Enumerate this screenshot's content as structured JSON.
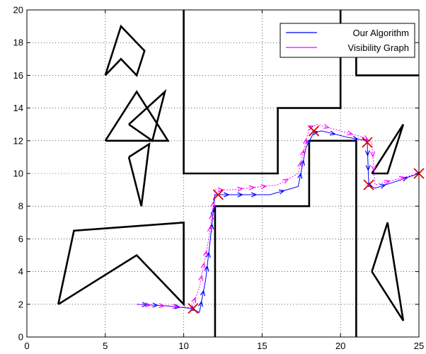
{
  "chart_data": {
    "type": "line",
    "title": "",
    "xlabel": "",
    "ylabel": "",
    "xlim": [
      0,
      25
    ],
    "ylim": [
      0,
      20
    ],
    "xticks": [
      "0",
      "5",
      "10",
      "15",
      "20",
      "25"
    ],
    "yticks": [
      "0",
      "2",
      "4",
      "6",
      "8",
      "10",
      "12",
      "14",
      "16",
      "18",
      "20"
    ],
    "grid": true,
    "legend_position": "top-right",
    "obstacles": [
      [
        [
          2,
          2
        ],
        [
          3,
          6.5
        ],
        [
          10,
          7
        ],
        [
          10,
          2
        ],
        [
          7,
          5
        ],
        [
          2,
          2
        ]
      ],
      [
        [
          6.5,
          13
        ],
        [
          8,
          12
        ],
        [
          8.8,
          15
        ],
        [
          6.5,
          13
        ]
      ],
      [
        [
          5,
          12
        ],
        [
          7,
          15
        ],
        [
          9,
          12
        ],
        [
          5,
          12
        ]
      ],
      [
        [
          6.5,
          11
        ],
        [
          7.8,
          11.8
        ],
        [
          7.3,
          8
        ],
        [
          6.5,
          11
        ]
      ],
      [
        [
          5,
          16
        ],
        [
          6,
          19
        ],
        [
          7.5,
          17.5
        ],
        [
          7,
          16
        ],
        [
          6,
          17
        ],
        [
          5,
          16
        ]
      ],
      [
        [
          10,
          20
        ],
        [
          10,
          10
        ],
        [
          16,
          10
        ],
        [
          16,
          14
        ],
        [
          20,
          14
        ],
        [
          20,
          20
        ]
      ],
      [
        [
          20,
          17.5
        ],
        [
          21,
          17.5
        ],
        [
          21,
          16
        ],
        [
          25,
          16
        ]
      ],
      [
        [
          12,
          0
        ],
        [
          12,
          8
        ],
        [
          18,
          8
        ],
        [
          18,
          12
        ],
        [
          21,
          12
        ],
        [
          21,
          0
        ]
      ],
      [
        [
          22,
          10
        ],
        [
          23,
          10
        ],
        [
          24,
          13
        ],
        [
          22,
          10
        ]
      ],
      [
        [
          22,
          4
        ],
        [
          23,
          7
        ],
        [
          24,
          1
        ],
        [
          22,
          4
        ]
      ]
    ],
    "series": [
      {
        "name": "Our Algorithm",
        "color": "#0000ff",
        "x": [
          7,
          9,
          10.5,
          11,
          11.4,
          11.7,
          12,
          15.5,
          17.3,
          17.8,
          18.3,
          18.8,
          20.5,
          21.7,
          21.8,
          22.2,
          23.5,
          25
        ],
        "y": [
          2,
          1.9,
          1.75,
          1.5,
          3.5,
          6,
          8.7,
          8.7,
          9.2,
          11.6,
          12.5,
          12.6,
          12.2,
          12,
          9.3,
          9.1,
          9.5,
          10
        ]
      },
      {
        "name": "Visibility Graph",
        "color": "#ff00ff",
        "x": [
          7,
          10.5,
          11,
          11.6,
          12,
          13,
          16,
          17.3,
          18,
          18.5,
          20,
          21.5,
          22,
          22.2,
          25
        ],
        "y": [
          2,
          1.8,
          3,
          6,
          9,
          9,
          9.3,
          10,
          12.8,
          13,
          12.6,
          12.2,
          11.9,
          9.3,
          10
        ]
      }
    ],
    "waypoints": [
      [
        10.6,
        1.75
      ],
      [
        12.2,
        8.7
      ],
      [
        18.3,
        12.6
      ],
      [
        21.7,
        11.9
      ],
      [
        21.8,
        9.3
      ],
      [
        25,
        10
      ]
    ]
  }
}
